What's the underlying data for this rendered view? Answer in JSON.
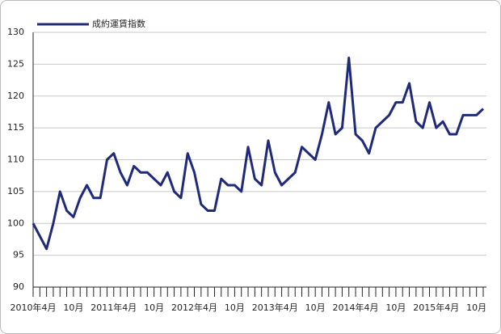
{
  "chart_data": {
    "type": "line",
    "categories": [
      "2010年4月",
      null,
      null,
      null,
      null,
      null,
      "10月",
      null,
      null,
      null,
      null,
      null,
      "2011年4月",
      null,
      null,
      null,
      null,
      null,
      "10月",
      null,
      null,
      null,
      null,
      null,
      "2012年4月",
      null,
      null,
      null,
      null,
      null,
      "10月",
      null,
      null,
      null,
      null,
      null,
      "2013年4月",
      null,
      null,
      null,
      null,
      null,
      "10月",
      null,
      null,
      null,
      null,
      null,
      "2014年4月",
      null,
      null,
      null,
      null,
      null,
      "10月",
      null,
      null,
      null,
      null,
      null,
      "2015年4月",
      null,
      null,
      null,
      null,
      null,
      "10月",
      null
    ],
    "series": [
      {
        "name": "成約運賃指数",
        "color": "#1f2a7a",
        "values": [
          100,
          98,
          96,
          100,
          105,
          102,
          101,
          104,
          106,
          104,
          104,
          110,
          111,
          108,
          106,
          109,
          108,
          108,
          107,
          106,
          108,
          105,
          104,
          111,
          108,
          103,
          102,
          102,
          107,
          106,
          106,
          105,
          112,
          107,
          106,
          113,
          108,
          106,
          107,
          108,
          112,
          111,
          110,
          114,
          119,
          114,
          115,
          126,
          114,
          113,
          111,
          115,
          116,
          117,
          119,
          119,
          122,
          116,
          115,
          119,
          115,
          116,
          114,
          114,
          117,
          117,
          117,
          118
        ]
      }
    ],
    "ylim": [
      90,
      130
    ],
    "yticks": [
      90,
      95,
      100,
      105,
      110,
      115,
      120,
      125,
      130
    ],
    "grid": true
  }
}
